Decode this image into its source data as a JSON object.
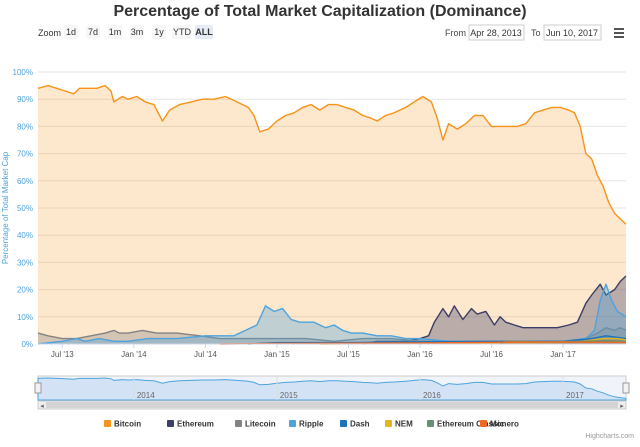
{
  "chart_data": {
    "type": "area",
    "title": "Percentage of Total Market Capitalization (Dominance)",
    "ylabel": "Percentage of Total Market Cap",
    "xlabel": "",
    "ylim": [
      0,
      100
    ],
    "y_ticks": [
      "0%",
      "10%",
      "20%",
      "30%",
      "40%",
      "50%",
      "60%",
      "70%",
      "80%",
      "90%",
      "100%"
    ],
    "x_range": [
      2013.33,
      2017.44
    ],
    "x_ticks": [
      {
        "label": "Jul '13",
        "x": 2013.5
      },
      {
        "label": "Jan '14",
        "x": 2014.0
      },
      {
        "label": "Jul '14",
        "x": 2014.5
      },
      {
        "label": "Jan '15",
        "x": 2015.0
      },
      {
        "label": "Jul '15",
        "x": 2015.5
      },
      {
        "label": "Jan '16",
        "x": 2016.0
      },
      {
        "label": "Jul '16",
        "x": 2016.5
      },
      {
        "label": "Jan '17",
        "x": 2017.0
      }
    ],
    "navigator_ticks": [
      {
        "label": "2014",
        "x": 2014.0
      },
      {
        "label": "2015",
        "x": 2015.0
      },
      {
        "label": "2016",
        "x": 2016.0
      },
      {
        "label": "2017",
        "x": 2017.0
      }
    ],
    "series": [
      {
        "name": "Bitcoin",
        "color": "#f7931a",
        "points": [
          [
            2013.33,
            94
          ],
          [
            2013.4,
            95
          ],
          [
            2013.46,
            94
          ],
          [
            2013.52,
            93
          ],
          [
            2013.58,
            92
          ],
          [
            2013.62,
            94
          ],
          [
            2013.68,
            94
          ],
          [
            2013.74,
            94
          ],
          [
            2013.8,
            95
          ],
          [
            2013.84,
            93
          ],
          [
            2013.86,
            89
          ],
          [
            2013.92,
            91
          ],
          [
            2013.96,
            90
          ],
          [
            2014.02,
            91
          ],
          [
            2014.08,
            89
          ],
          [
            2014.14,
            88
          ],
          [
            2014.2,
            82
          ],
          [
            2014.25,
            86
          ],
          [
            2014.32,
            88
          ],
          [
            2014.4,
            89
          ],
          [
            2014.48,
            90
          ],
          [
            2014.56,
            90
          ],
          [
            2014.64,
            91
          ],
          [
            2014.72,
            89
          ],
          [
            2014.8,
            87
          ],
          [
            2014.84,
            84
          ],
          [
            2014.88,
            78
          ],
          [
            2014.94,
            79
          ],
          [
            2015.0,
            82
          ],
          [
            2015.06,
            84
          ],
          [
            2015.12,
            85
          ],
          [
            2015.18,
            87
          ],
          [
            2015.24,
            88
          ],
          [
            2015.3,
            86
          ],
          [
            2015.36,
            88
          ],
          [
            2015.42,
            88
          ],
          [
            2015.48,
            87
          ],
          [
            2015.54,
            86
          ],
          [
            2015.6,
            84
          ],
          [
            2015.66,
            83
          ],
          [
            2015.7,
            82
          ],
          [
            2015.76,
            84
          ],
          [
            2015.82,
            85
          ],
          [
            2015.9,
            87
          ],
          [
            2015.96,
            89
          ],
          [
            2016.02,
            91
          ],
          [
            2016.08,
            89
          ],
          [
            2016.12,
            83
          ],
          [
            2016.16,
            75
          ],
          [
            2016.2,
            81
          ],
          [
            2016.26,
            79
          ],
          [
            2016.32,
            81
          ],
          [
            2016.38,
            84
          ],
          [
            2016.44,
            84
          ],
          [
            2016.5,
            80
          ],
          [
            2016.56,
            80
          ],
          [
            2016.62,
            80
          ],
          [
            2016.68,
            80
          ],
          [
            2016.74,
            81
          ],
          [
            2016.8,
            85
          ],
          [
            2016.86,
            86
          ],
          [
            2016.92,
            87
          ],
          [
            2016.98,
            87
          ],
          [
            2017.04,
            86
          ],
          [
            2017.08,
            85
          ],
          [
            2017.12,
            80
          ],
          [
            2017.16,
            70
          ],
          [
            2017.2,
            68
          ],
          [
            2017.24,
            62
          ],
          [
            2017.28,
            58
          ],
          [
            2017.32,
            52
          ],
          [
            2017.36,
            48
          ],
          [
            2017.4,
            46
          ],
          [
            2017.44,
            44
          ]
        ]
      },
      {
        "name": "Ethereum",
        "color": "#3b3e66",
        "points": [
          [
            2015.6,
            0
          ],
          [
            2015.7,
            1
          ],
          [
            2015.8,
            1
          ],
          [
            2015.9,
            1
          ],
          [
            2016.0,
            2
          ],
          [
            2016.06,
            3
          ],
          [
            2016.1,
            8
          ],
          [
            2016.16,
            13
          ],
          [
            2016.2,
            10
          ],
          [
            2016.24,
            14
          ],
          [
            2016.3,
            9
          ],
          [
            2016.36,
            13
          ],
          [
            2016.4,
            11
          ],
          [
            2016.46,
            12
          ],
          [
            2016.52,
            7
          ],
          [
            2016.56,
            10
          ],
          [
            2016.6,
            8
          ],
          [
            2016.66,
            7
          ],
          [
            2016.72,
            6
          ],
          [
            2016.8,
            6
          ],
          [
            2016.88,
            6
          ],
          [
            2016.96,
            6
          ],
          [
            2017.04,
            7
          ],
          [
            2017.1,
            8
          ],
          [
            2017.16,
            15
          ],
          [
            2017.2,
            18
          ],
          [
            2017.26,
            22
          ],
          [
            2017.3,
            18
          ],
          [
            2017.36,
            20
          ],
          [
            2017.4,
            23
          ],
          [
            2017.44,
            25
          ]
        ]
      },
      {
        "name": "Litecoin",
        "color": "#838383",
        "points": [
          [
            2013.33,
            4
          ],
          [
            2013.4,
            3
          ],
          [
            2013.5,
            2
          ],
          [
            2013.6,
            2
          ],
          [
            2013.7,
            3
          ],
          [
            2013.8,
            4
          ],
          [
            2013.86,
            5
          ],
          [
            2013.9,
            4
          ],
          [
            2013.96,
            4
          ],
          [
            2014.06,
            5
          ],
          [
            2014.16,
            4
          ],
          [
            2014.3,
            4
          ],
          [
            2014.46,
            3
          ],
          [
            2014.6,
            2
          ],
          [
            2014.8,
            2
          ],
          [
            2015.0,
            2
          ],
          [
            2015.2,
            2
          ],
          [
            2015.4,
            1
          ],
          [
            2015.6,
            2
          ],
          [
            2015.8,
            2
          ],
          [
            2016.0,
            1
          ],
          [
            2016.2,
            1
          ],
          [
            2016.5,
            1
          ],
          [
            2016.8,
            1
          ],
          [
            2017.0,
            1
          ],
          [
            2017.16,
            2
          ],
          [
            2017.24,
            4
          ],
          [
            2017.3,
            6
          ],
          [
            2017.36,
            5
          ],
          [
            2017.4,
            6
          ],
          [
            2017.44,
            5
          ]
        ]
      },
      {
        "name": "Ripple",
        "color": "#4ca3dd",
        "points": [
          [
            2013.33,
            0
          ],
          [
            2013.5,
            1
          ],
          [
            2013.6,
            2
          ],
          [
            2013.66,
            1
          ],
          [
            2013.76,
            2
          ],
          [
            2013.86,
            1
          ],
          [
            2013.96,
            1
          ],
          [
            2014.1,
            2
          ],
          [
            2014.3,
            2
          ],
          [
            2014.5,
            3
          ],
          [
            2014.7,
            3
          ],
          [
            2014.86,
            7
          ],
          [
            2014.92,
            14
          ],
          [
            2014.98,
            12
          ],
          [
            2015.04,
            13
          ],
          [
            2015.1,
            9
          ],
          [
            2015.16,
            8
          ],
          [
            2015.26,
            8
          ],
          [
            2015.34,
            6
          ],
          [
            2015.4,
            7
          ],
          [
            2015.46,
            5
          ],
          [
            2015.52,
            4
          ],
          [
            2015.6,
            4
          ],
          [
            2015.7,
            3
          ],
          [
            2015.8,
            3
          ],
          [
            2015.9,
            2
          ],
          [
            2016.0,
            2
          ],
          [
            2016.2,
            1
          ],
          [
            2016.5,
            1
          ],
          [
            2016.8,
            1
          ],
          [
            2017.0,
            1
          ],
          [
            2017.16,
            2
          ],
          [
            2017.22,
            5
          ],
          [
            2017.26,
            16
          ],
          [
            2017.3,
            22
          ],
          [
            2017.34,
            16
          ],
          [
            2017.38,
            12
          ],
          [
            2017.44,
            10
          ]
        ]
      },
      {
        "name": "Dash",
        "color": "#1c75bc",
        "points": [
          [
            2014.8,
            0
          ],
          [
            2015.0,
            0.5
          ],
          [
            2015.5,
            0.5
          ],
          [
            2016.0,
            0.8
          ],
          [
            2016.5,
            1
          ],
          [
            2017.0,
            1
          ],
          [
            2017.2,
            2
          ],
          [
            2017.3,
            3
          ],
          [
            2017.44,
            2
          ]
        ]
      },
      {
        "name": "NEM",
        "color": "#e6b422",
        "points": [
          [
            2015.3,
            0
          ],
          [
            2016.0,
            0.2
          ],
          [
            2016.8,
            0.4
          ],
          [
            2017.1,
            0.8
          ],
          [
            2017.28,
            2
          ],
          [
            2017.38,
            2
          ],
          [
            2017.44,
            1.5
          ]
        ]
      },
      {
        "name": "Ethereum Classic",
        "color": "#669073",
        "points": [
          [
            2016.56,
            0
          ],
          [
            2016.6,
            1
          ],
          [
            2016.7,
            1
          ],
          [
            2016.9,
            0.8
          ],
          [
            2017.1,
            1
          ],
          [
            2017.3,
            1.2
          ],
          [
            2017.44,
            1
          ]
        ]
      },
      {
        "name": "Monero",
        "color": "#f26822",
        "points": [
          [
            2014.6,
            0
          ],
          [
            2015.0,
            0.2
          ],
          [
            2016.0,
            0.4
          ],
          [
            2016.7,
            0.7
          ],
          [
            2017.1,
            0.7
          ],
          [
            2017.44,
            0.6
          ]
        ]
      }
    ]
  },
  "zoom": {
    "label": "Zoom",
    "buttons": [
      "1d",
      "7d",
      "1m",
      "3m",
      "1y",
      "YTD",
      "ALL"
    ],
    "active": "ALL"
  },
  "date_range": {
    "from_label": "From",
    "from_value": "Apr 28, 2013",
    "to_label": "To",
    "to_value": "Jun 10, 2017"
  },
  "menu_icon": "hamburger-menu-icon",
  "credits": "Highcharts.com"
}
